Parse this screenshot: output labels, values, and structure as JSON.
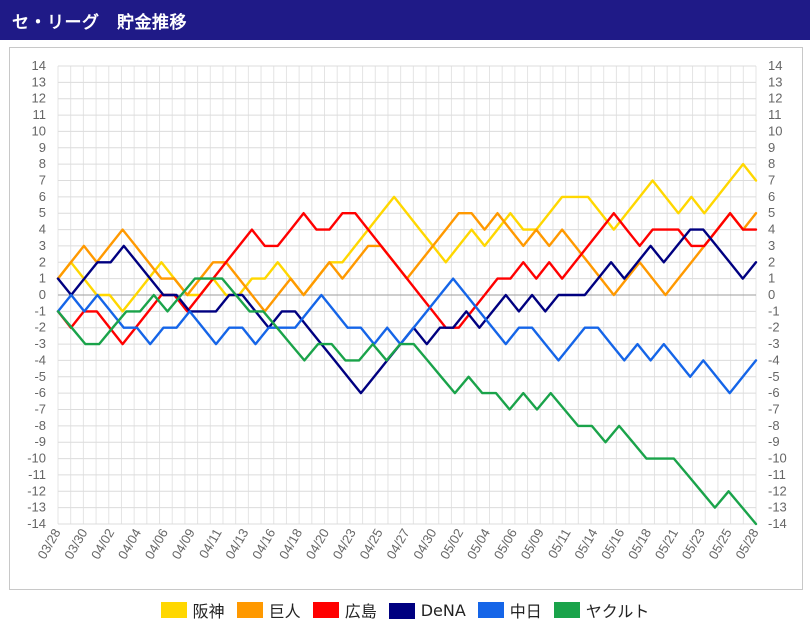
{
  "header": {
    "title": "セ・リーグ　貯金推移"
  },
  "chart_data": {
    "type": "line",
    "ylim": [
      -14,
      14
    ],
    "y_ticks": [
      14,
      13,
      12,
      11,
      10,
      9,
      8,
      7,
      6,
      5,
      4,
      3,
      2,
      1,
      0,
      -1,
      -2,
      -3,
      -4,
      -5,
      -6,
      -7,
      -8,
      -9,
      -10,
      -11,
      -12,
      -13,
      -14
    ],
    "x_labels": [
      "03/28",
      "03/30",
      "04/02",
      "04/04",
      "04/06",
      "04/09",
      "04/11",
      "04/13",
      "04/16",
      "04/18",
      "04/20",
      "04/23",
      "04/25",
      "04/27",
      "04/30",
      "05/02",
      "05/04",
      "05/06",
      "05/09",
      "05/11",
      "05/14",
      "05/16",
      "05/18",
      "05/21",
      "05/23",
      "05/25",
      "05/28"
    ],
    "legend_position": "bottom",
    "grid": true,
    "series": [
      {
        "name": "阪神",
        "color": "#ffd700",
        "values": [
          1,
          2,
          1,
          0,
          0,
          -1,
          0,
          1,
          2,
          1,
          0,
          0,
          1,
          0,
          0,
          1,
          1,
          2,
          1,
          0,
          1,
          2,
          2,
          3,
          4,
          5,
          6,
          5,
          4,
          3,
          2,
          3,
          4,
          3,
          4,
          5,
          4,
          4,
          5,
          6,
          6,
          6,
          5,
          4,
          5,
          6,
          7,
          6,
          5,
          6,
          5,
          6,
          7,
          8,
          7
        ]
      },
      {
        "name": "巨人",
        "color": "#ff9900",
        "values": [
          1,
          2,
          3,
          2,
          3,
          4,
          3,
          2,
          1,
          1,
          0,
          1,
          2,
          2,
          1,
          0,
          -1,
          0,
          1,
          0,
          1,
          2,
          1,
          2,
          3,
          3,
          2,
          1,
          2,
          3,
          4,
          5,
          5,
          4,
          5,
          4,
          3,
          4,
          3,
          4,
          3,
          2,
          1,
          0,
          1,
          2,
          1,
          0,
          1,
          2,
          3,
          4,
          5,
          4,
          5
        ]
      },
      {
        "name": "広島",
        "color": "#ff0000",
        "values": [
          -1,
          -2,
          -1,
          -1,
          -2,
          -3,
          -2,
          -1,
          0,
          0,
          -1,
          0,
          1,
          2,
          3,
          4,
          3,
          3,
          4,
          5,
          4,
          4,
          5,
          5,
          4,
          3,
          2,
          1,
          0,
          -1,
          -2,
          -2,
          -1,
          0,
          1,
          1,
          2,
          1,
          2,
          1,
          2,
          3,
          4,
          5,
          4,
          3,
          4,
          4,
          4,
          3,
          3,
          4,
          5,
          4,
          4
        ]
      },
      {
        "name": "DeNA",
        "color": "#000080",
        "values": [
          1,
          0,
          1,
          2,
          2,
          3,
          2,
          1,
          0,
          0,
          -1,
          -1,
          -1,
          0,
          0,
          -1,
          -2,
          -1,
          -1,
          -2,
          -3,
          -4,
          -5,
          -6,
          -5,
          -4,
          -3,
          -2,
          -3,
          -2,
          -2,
          -1,
          -2,
          -1,
          0,
          -1,
          0,
          -1,
          0,
          0,
          0,
          1,
          2,
          1,
          2,
          3,
          2,
          3,
          4,
          4,
          3,
          2,
          1,
          2
        ]
      },
      {
        "name": "中日",
        "color": "#1565e8",
        "values": [
          -1,
          0,
          -1,
          0,
          -1,
          -2,
          -2,
          -3,
          -2,
          -2,
          -1,
          -2,
          -3,
          -2,
          -2,
          -3,
          -2,
          -2,
          -2,
          -1,
          0,
          -1,
          -2,
          -2,
          -3,
          -2,
          -3,
          -2,
          -1,
          0,
          1,
          0,
          -1,
          -2,
          -3,
          -2,
          -2,
          -3,
          -4,
          -3,
          -2,
          -2,
          -3,
          -4,
          -3,
          -4,
          -3,
          -4,
          -5,
          -4,
          -5,
          -6,
          -5,
          -4
        ]
      },
      {
        "name": "ヤクルト",
        "color": "#1aa34a",
        "values": [
          -1,
          -2,
          -3,
          -3,
          -2,
          -1,
          -1,
          0,
          -1,
          0,
          1,
          1,
          1,
          0,
          -1,
          -1,
          -2,
          -3,
          -4,
          -3,
          -3,
          -4,
          -4,
          -3,
          -4,
          -3,
          -3,
          -4,
          -5,
          -6,
          -5,
          -6,
          -6,
          -7,
          -6,
          -7,
          -6,
          -7,
          -8,
          -8,
          -9,
          -8,
          -9,
          -10,
          -10,
          -10,
          -11,
          -12,
          -13,
          -12,
          -13,
          -14
        ]
      }
    ]
  }
}
